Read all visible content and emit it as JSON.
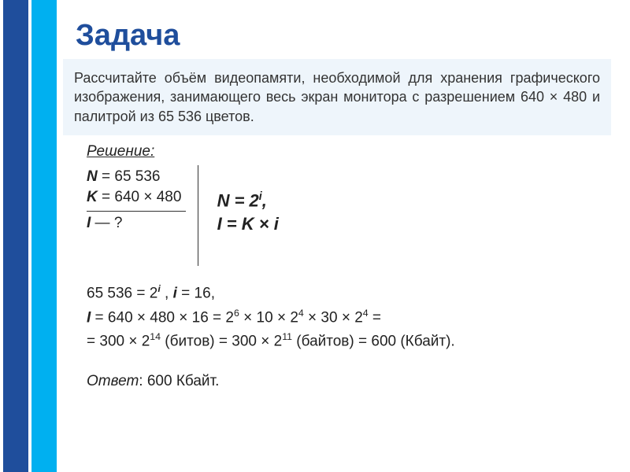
{
  "title": "Задача",
  "problem": "Рассчитайте объём видеопамяти, необходимой для хранения графического изображения, занимающего весь экран монитора с разрешением 640 × 480 и палитрой из 65 536 цветов.",
  "solution_label": "Решение:",
  "given": {
    "n_var": "N",
    "n_val": " = 65 536",
    "k_var": "K",
    "k_val": " = 640 × 480",
    "i_var": "I",
    "i_val": "  — ?"
  },
  "formulas": {
    "f1_lhs": "N = 2",
    "f1_exp": "i",
    "f1_tail": ",",
    "f2": "I = K ×  i"
  },
  "calc": {
    "l1a": "65 536 = 2",
    "l1exp": "i",
    "l1b": " ,  ",
    "l1c_var": "i",
    "l1c": " = 16,",
    "l2_var": "I",
    "l2a": " = 640 × 480 × 16  = 2",
    "l2e1": "6",
    "l2b": " × 10 × 2",
    "l2e2": "4",
    "l2c": " × 30 × 2",
    "l2e3": "4",
    "l2d": " =",
    "l3a": "= 300 × 2",
    "l3e1": "14",
    "l3b": " (битов) = 300 × 2",
    "l3e2": "11",
    "l3c": " (байтов) = 600 (Кбайт)."
  },
  "answer_label": "Ответ",
  "answer_value": ": 600 Кбайт.",
  "colors": {
    "stripe1": "#1f4e9c",
    "stripe2": "#00b0f0",
    "box_bg": "#eef5fb"
  }
}
